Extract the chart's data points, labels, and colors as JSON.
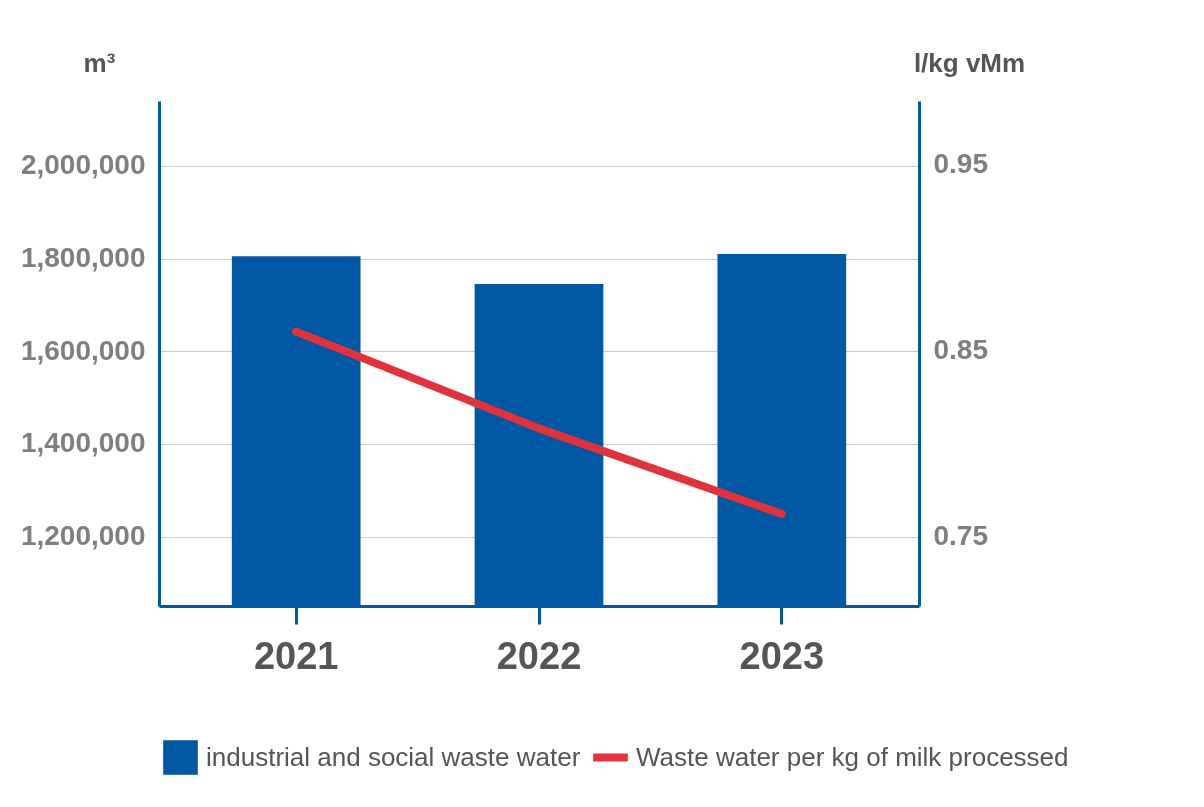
{
  "chart_data": {
    "type": "bar",
    "ylabel": "m³",
    "y2label": "l/kg vMm",
    "categories": [
      "2021",
      "2022",
      "2023"
    ],
    "series": [
      {
        "name": "industrial and social waste water",
        "color": "#0057a3",
        "values": [
          1805000,
          1745000,
          1810000
        ]
      },
      {
        "name": "Waste water per kg of milk processed",
        "type": "line",
        "axis": "y2",
        "color": "#e0333c",
        "values": [
          0.86,
          0.808,
          0.762
        ]
      }
    ],
    "ylim": [
      1050000,
      2140000
    ],
    "yticks": [
      {
        "value": 1200000,
        "label": "1,200,000"
      },
      {
        "value": 1400000,
        "label": "1,400,000"
      },
      {
        "value": 1600000,
        "label": "1,600,000"
      },
      {
        "value": 1800000,
        "label": "1,800,000"
      },
      {
        "value": 2000000,
        "label": "2,000,000"
      }
    ],
    "y2lim": [
      0.7125,
      0.984
    ],
    "y2ticks": [
      0.75,
      0.85,
      0.95
    ],
    "grid": "y",
    "legend": "bottom",
    "marker": "none"
  }
}
